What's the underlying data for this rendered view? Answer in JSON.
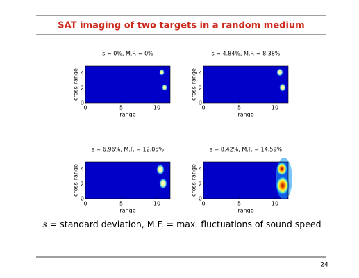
{
  "header": {
    "title": "SAT imaging of two targets in a random medium"
  },
  "panels": [
    {
      "title": "s = 0%, M.F. = 0%",
      "xlabel": "range",
      "ylabel": "cross-range",
      "xticks": [
        "0",
        "5",
        "10"
      ],
      "yticks": [
        "0",
        "2",
        "4"
      ]
    },
    {
      "title": "s = 4.84%, M.F. = 8.38%",
      "xlabel": "range",
      "ylabel": "cross-range",
      "xticks": [
        "0",
        "5",
        "10"
      ],
      "yticks": [
        "0",
        "2",
        "4"
      ]
    },
    {
      "title": "s = 6.96%, M.F. = 12.05%",
      "xlabel": "range",
      "ylabel": "cross-range",
      "xticks": [
        "0",
        "5",
        "10"
      ],
      "yticks": [
        "0",
        "2",
        "4"
      ]
    },
    {
      "title": "s = 8.42%, M.F. = 14.59%",
      "xlabel": "range",
      "ylabel": "cross-range",
      "xticks": [
        "0",
        "5",
        "10"
      ],
      "yticks": [
        "0",
        "2",
        "4"
      ]
    }
  ],
  "caption": {
    "symbol": "s",
    "text": "= standard deviation, M.F. = max. fluctuations of sound speed"
  },
  "footer": {
    "page_number": "24"
  }
}
